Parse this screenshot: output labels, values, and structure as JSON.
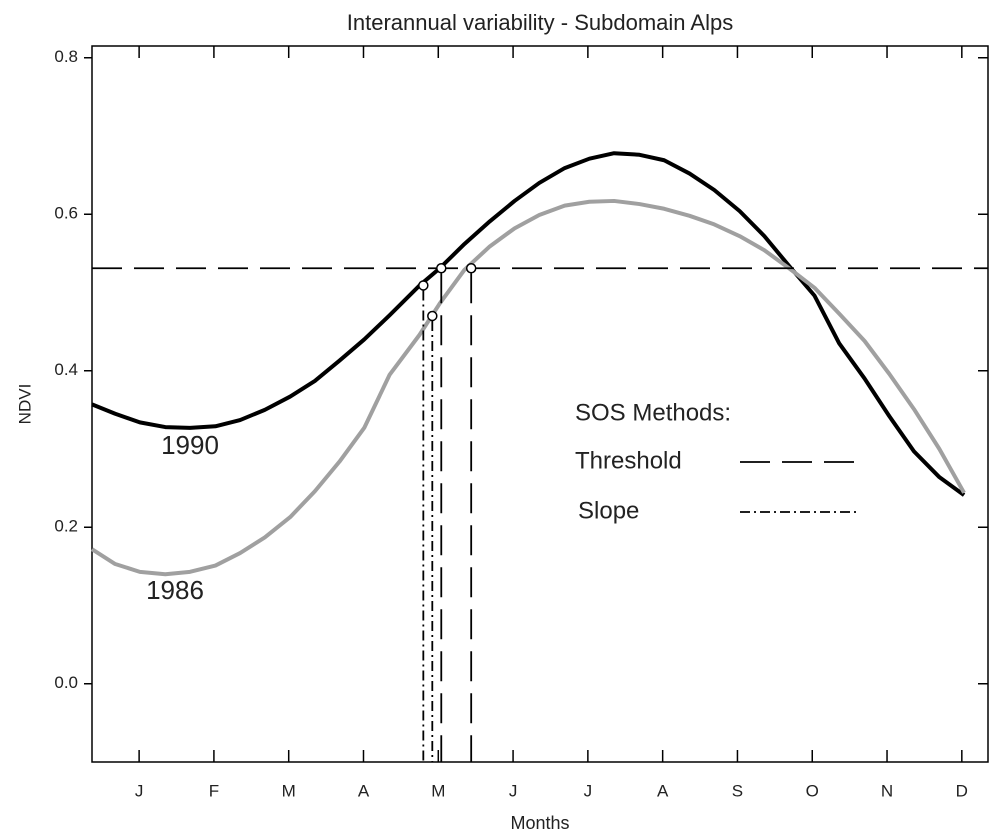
{
  "chart_data": {
    "type": "line",
    "title": "Interannual variability - Subdomain Alps",
    "x_label": "Months",
    "y_label": "NDVI",
    "xlim": [
      0.37,
      12.35
    ],
    "xticks": [
      {
        "value": 1,
        "label": "J"
      },
      {
        "value": 2,
        "label": "F"
      },
      {
        "value": 3,
        "label": "M"
      },
      {
        "value": 4,
        "label": "A"
      },
      {
        "value": 5,
        "label": "M"
      },
      {
        "value": 6,
        "label": "J"
      },
      {
        "value": 7,
        "label": "J"
      },
      {
        "value": 8,
        "label": "A"
      },
      {
        "value": 9,
        "label": "S"
      },
      {
        "value": 10,
        "label": "O"
      },
      {
        "value": 11,
        "label": "N"
      },
      {
        "value": 12,
        "label": "D"
      }
    ],
    "ylim": [
      -0.1,
      0.815
    ],
    "yticks": [
      {
        "value": 0,
        "label": "0.0"
      },
      {
        "value": 0.2,
        "label": "0.2"
      },
      {
        "value": 0.4,
        "label": "0.4"
      },
      {
        "value": 0.6,
        "label": "0.6"
      },
      {
        "value": 0.8,
        "label": "0.8"
      }
    ],
    "x": [
      0.37,
      0.68,
      1.01,
      1.35,
      1.68,
      2.02,
      2.35,
      2.68,
      3.02,
      3.35,
      3.68,
      4.01,
      4.35,
      4.75,
      5.02,
      5.35,
      5.69,
      6.02,
      6.35,
      6.69,
      7.02,
      7.35,
      7.69,
      8.02,
      8.36,
      8.69,
      9.03,
      9.36,
      9.69,
      10.03,
      10.36,
      10.7,
      11.03,
      11.36,
      11.7,
      12.03
    ],
    "series": [
      {
        "name": "1990",
        "color": "#000000",
        "values": [
          0.357,
          0.345,
          0.334,
          0.328,
          0.327,
          0.329,
          0.337,
          0.35,
          0.367,
          0.387,
          0.413,
          0.44,
          0.471,
          0.509,
          0.531,
          0.562,
          0.591,
          0.617,
          0.64,
          0.659,
          0.671,
          0.678,
          0.676,
          0.669,
          0.652,
          0.631,
          0.604,
          0.572,
          0.534,
          0.496,
          0.435,
          0.39,
          0.342,
          0.297,
          0.264,
          0.241
        ]
      },
      {
        "name": "1986",
        "color": "#a0a0a0",
        "values": [
          0.172,
          0.153,
          0.143,
          0.14,
          0.143,
          0.151,
          0.167,
          0.187,
          0.213,
          0.246,
          0.284,
          0.327,
          0.395,
          0.446,
          0.486,
          0.529,
          0.559,
          0.582,
          0.599,
          0.611,
          0.616,
          0.617,
          0.613,
          0.607,
          0.598,
          0.587,
          0.572,
          0.554,
          0.531,
          0.506,
          0.473,
          0.438,
          0.396,
          0.351,
          0.3,
          0.244
        ]
      }
    ],
    "threshold": 0.531,
    "legend_title": "SOS Methods:",
    "methods": [
      {
        "name": "Threshold",
        "style": "dash",
        "x": [
          5.04,
          5.44
        ],
        "y": [
          0.531,
          0.531
        ]
      },
      {
        "name": "Slope",
        "style": "dashdot",
        "x": [
          4.8,
          4.92
        ],
        "y": [
          0.509,
          0.47
        ]
      }
    ]
  }
}
